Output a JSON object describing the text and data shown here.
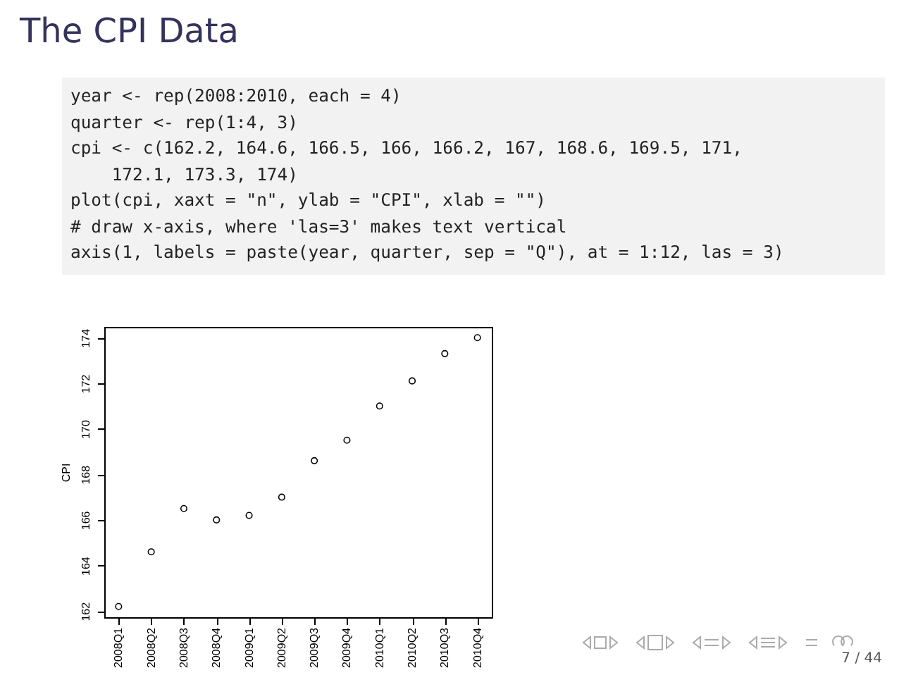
{
  "chart_data": {
    "type": "scatter",
    "title": "The CPI Data",
    "ylabel": "CPI",
    "categories": [
      "2008Q1",
      "2008Q2",
      "2008Q3",
      "2008Q4",
      "2009Q1",
      "2009Q2",
      "2009Q3",
      "2009Q4",
      "2010Q1",
      "2010Q2",
      "2010Q3",
      "2010Q4"
    ],
    "values": [
      162.2,
      164.6,
      166.5,
      166,
      166.2,
      167,
      168.6,
      169.5,
      171,
      172.1,
      173.3,
      174
    ],
    "color": "#000000",
    "marker": "circle",
    "grid": false,
    "ylim": [
      161.73,
      174.47
    ],
    "yticks": [
      162,
      164,
      166,
      168,
      170,
      172,
      174
    ],
    "annotations": [
      "year <- rep(2008:2010, each = 4)",
      "quarter <- rep(1:4, 3)",
      "cpi <- c(162.2, 164.6, 166.5, 166, 166.2, 167, 168.6, 169.5, 171,",
      "    172.1, 173.3, 174)",
      "plot(cpi, xaxt = \"n\", ylab = \"CPI\", xlab = \"\")",
      "# draw x-axis, where 'las=3' makes text vertical",
      "axis(1, labels = paste(year, quarter, sep = \"Q\"), at = 1:12, las = 3)",
      "7 / 44"
    ]
  }
}
